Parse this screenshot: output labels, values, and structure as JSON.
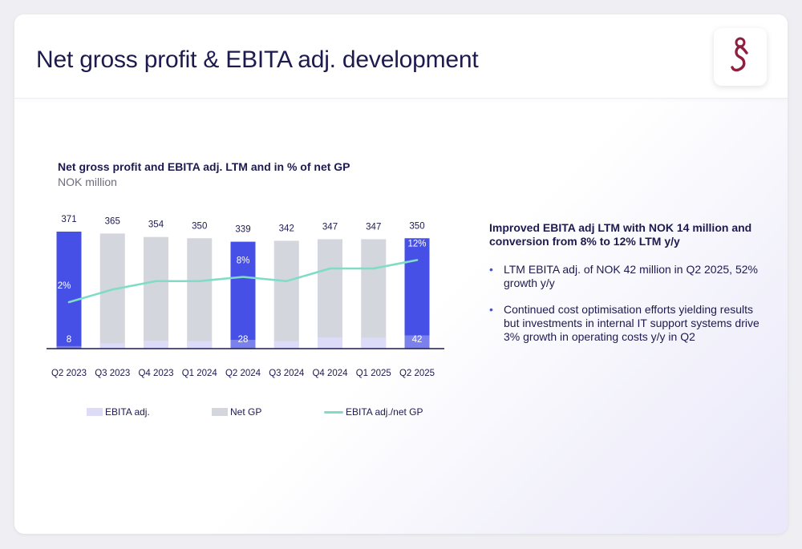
{
  "page": {
    "title": "Net gross profit & EBITA adj. development"
  },
  "chart_header": {
    "title": "Net gross profit and EBITA adj.  LTM  and in % of net GP",
    "subtitle": "NOK million"
  },
  "chart_data": {
    "type": "bar",
    "categories": [
      "Q2 2023",
      "Q3 2023",
      "Q4 2023",
      "Q1 2024",
      "Q2 2024",
      "Q3 2024",
      "Q4 2024",
      "Q1 2025",
      "Q2 2025"
    ],
    "series": [
      {
        "name": "Net GP",
        "values": [
          371,
          365,
          354,
          350,
          339,
          342,
          347,
          347,
          350
        ]
      },
      {
        "name": "EBITA adj.",
        "values": [
          8,
          17,
          25,
          24,
          28,
          24,
          36,
          35,
          42
        ]
      },
      {
        "name": "EBITA adj./net GP",
        "type": "line",
        "values": [
          2,
          5,
          7,
          7,
          8,
          7,
          10,
          10,
          12
        ]
      }
    ],
    "highlighted_categories": [
      "Q2 2023",
      "Q2 2024",
      "Q2 2025"
    ],
    "bar_value_labels": [
      "371",
      "365",
      "354",
      "350",
      "339",
      "342",
      "347",
      "347",
      "350"
    ],
    "ebita_labels": [
      {
        "index": 0,
        "text": "8"
      },
      {
        "index": 4,
        "text": "28"
      },
      {
        "index": 8,
        "text": "42"
      }
    ],
    "pct_labels": [
      {
        "index": 0,
        "text": "2%"
      },
      {
        "index": 4,
        "text": "8%"
      },
      {
        "index": 8,
        "text": "12%"
      }
    ],
    "ylim": [
      0,
      380
    ],
    "pct_ylim": [
      0,
      20
    ],
    "legend": [
      {
        "label": "EBITA adj.",
        "kind": "bar",
        "color": "#dcdcf8"
      },
      {
        "label": "Net GP",
        "kind": "bar",
        "color": "#d3d6dd"
      },
      {
        "label": "EBITA adj./net GP",
        "kind": "line",
        "color": "#7fdcc6"
      }
    ],
    "colors": {
      "net_gp": "#d3d6dd",
      "highlight": "#4650e6",
      "ebita": "#dcdcf8",
      "line": "#7fdcc6",
      "axis": "#1d1a4f"
    }
  },
  "commentary": {
    "heading": "Improved EBITA adj LTM with NOK 14 million and conversion from 8% to 12% LTM y/y",
    "bullets": [
      "LTM EBITA adj. of NOK 42 million in Q2 2025, 52% growth y/y",
      "Continued cost optimisation efforts yielding results but investments in internal IT support systems drive 3% growth in operating costs y/y in Q2"
    ],
    "bullet_color": "#4b50e0"
  },
  "logo": {
    "icon": "company-logo-icon",
    "color": "#8e1f3f"
  }
}
